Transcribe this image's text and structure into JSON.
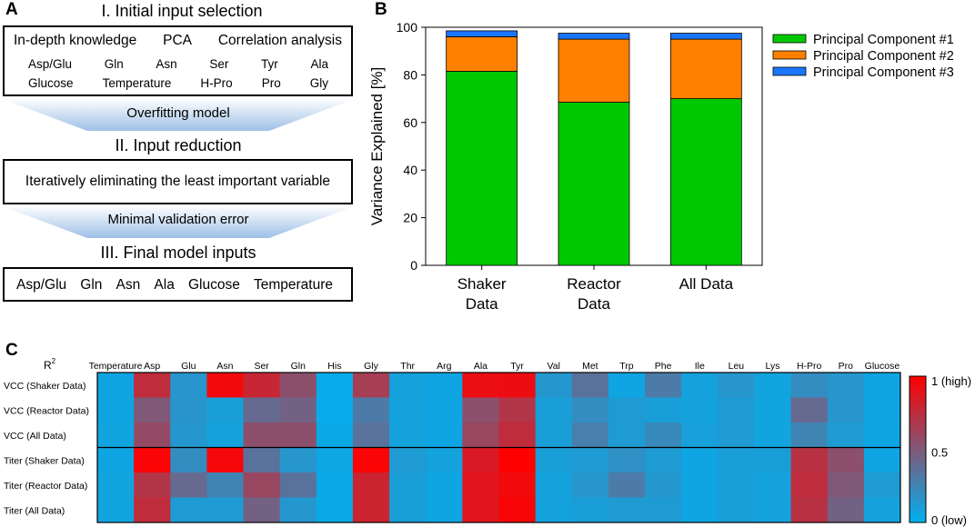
{
  "panelA": {
    "letter": "A",
    "step1_title": "I. Initial input selection",
    "methods": [
      "In-depth knowledge",
      "PCA",
      "Correlation analysis"
    ],
    "variables_row1": [
      "Asp/Glu",
      "Gln",
      "Asn",
      "Ser",
      "Tyr",
      "Ala"
    ],
    "variables_row2": [
      "Glucose",
      "Temperature",
      "H-Pro",
      "Pro",
      "Gly"
    ],
    "arrow1_label": "Overfitting model",
    "step2_title": "II. Input reduction",
    "step2_box": "Iteratively eliminating the least important variable",
    "arrow2_label": "Minimal validation error",
    "step3_title": "III. Final model inputs",
    "final_inputs": [
      "Asp/Glu",
      "Gln",
      "Asn",
      "Ala",
      "Glucose",
      "Temperature"
    ]
  },
  "panelB": {
    "letter": "B",
    "chart_data": {
      "type": "bar",
      "stacked": true,
      "categories": [
        "Shaker Data",
        "Reactor Data",
        "All Data"
      ],
      "category_lines": [
        [
          "Shaker",
          "Data"
        ],
        [
          "Reactor",
          "Data"
        ],
        [
          "All Data"
        ]
      ],
      "series": [
        {
          "name": "Principal Component #1",
          "color": "#00c800",
          "values": [
            81.5,
            68.5,
            70.0
          ]
        },
        {
          "name": "Principal Component #2",
          "color": "#ff8000",
          "values": [
            14.5,
            26.5,
            25.0
          ]
        },
        {
          "name": "Principal Component #3",
          "color": "#1a75ff",
          "values": [
            2.5,
            2.5,
            2.5
          ]
        }
      ],
      "ylabel": "Variance Explained [%]",
      "ylim": [
        0,
        100
      ],
      "yticks": [
        "0",
        "20",
        "40",
        "60",
        "80",
        "100"
      ],
      "legend_position": "top-right"
    }
  },
  "panelC": {
    "letter": "C",
    "chart_data": {
      "type": "heatmap",
      "corner_label": "R2",
      "columns": [
        "Temperature",
        "Asp",
        "Glu",
        "Asn",
        "Ser",
        "Gln",
        "His",
        "Gly",
        "Thr",
        "Arg",
        "Ala",
        "Tyr",
        "Val",
        "Met",
        "Trp",
        "Phe",
        "Ile",
        "Leu",
        "Lys",
        "H-Pro",
        "Pro",
        "Glucose"
      ],
      "rows": [
        "VCC (Shaker Data)",
        "VCC (Reactor Data)",
        "VCC (All Data)",
        "Titer (Shaker Data)",
        "Titer (Reactor Data)",
        "Titer (All Data)"
      ],
      "values": [
        [
          0.06,
          0.75,
          0.15,
          0.95,
          0.78,
          0.55,
          0.03,
          0.65,
          0.08,
          0.06,
          0.92,
          0.93,
          0.14,
          0.35,
          0.06,
          0.3,
          0.08,
          0.15,
          0.07,
          0.2,
          0.15,
          0.06
        ],
        [
          0.06,
          0.5,
          0.16,
          0.1,
          0.4,
          0.45,
          0.03,
          0.3,
          0.08,
          0.06,
          0.55,
          0.7,
          0.1,
          0.2,
          0.12,
          0.1,
          0.08,
          0.12,
          0.07,
          0.4,
          0.15,
          0.06
        ],
        [
          0.07,
          0.58,
          0.14,
          0.08,
          0.55,
          0.55,
          0.04,
          0.35,
          0.08,
          0.06,
          0.6,
          0.75,
          0.1,
          0.28,
          0.12,
          0.22,
          0.09,
          0.12,
          0.07,
          0.25,
          0.12,
          0.06
        ],
        [
          0.06,
          0.98,
          0.2,
          0.96,
          0.35,
          0.15,
          0.05,
          0.98,
          0.12,
          0.08,
          0.85,
          1.0,
          0.1,
          0.12,
          0.18,
          0.12,
          0.06,
          0.1,
          0.1,
          0.72,
          0.55,
          0.06
        ],
        [
          0.07,
          0.7,
          0.4,
          0.25,
          0.6,
          0.35,
          0.04,
          0.8,
          0.1,
          0.06,
          0.88,
          0.95,
          0.08,
          0.15,
          0.3,
          0.14,
          0.06,
          0.1,
          0.08,
          0.75,
          0.5,
          0.12
        ],
        [
          0.07,
          0.75,
          0.12,
          0.12,
          0.45,
          0.14,
          0.04,
          0.8,
          0.1,
          0.06,
          0.88,
          0.97,
          0.08,
          0.1,
          0.12,
          0.12,
          0.06,
          0.1,
          0.08,
          0.72,
          0.45,
          0.08
        ]
      ],
      "colorbar_labels": [
        "1 (high)",
        "0.5",
        "0 (low)"
      ],
      "colormap": [
        "#00b0f0",
        "#ff0000"
      ]
    }
  }
}
